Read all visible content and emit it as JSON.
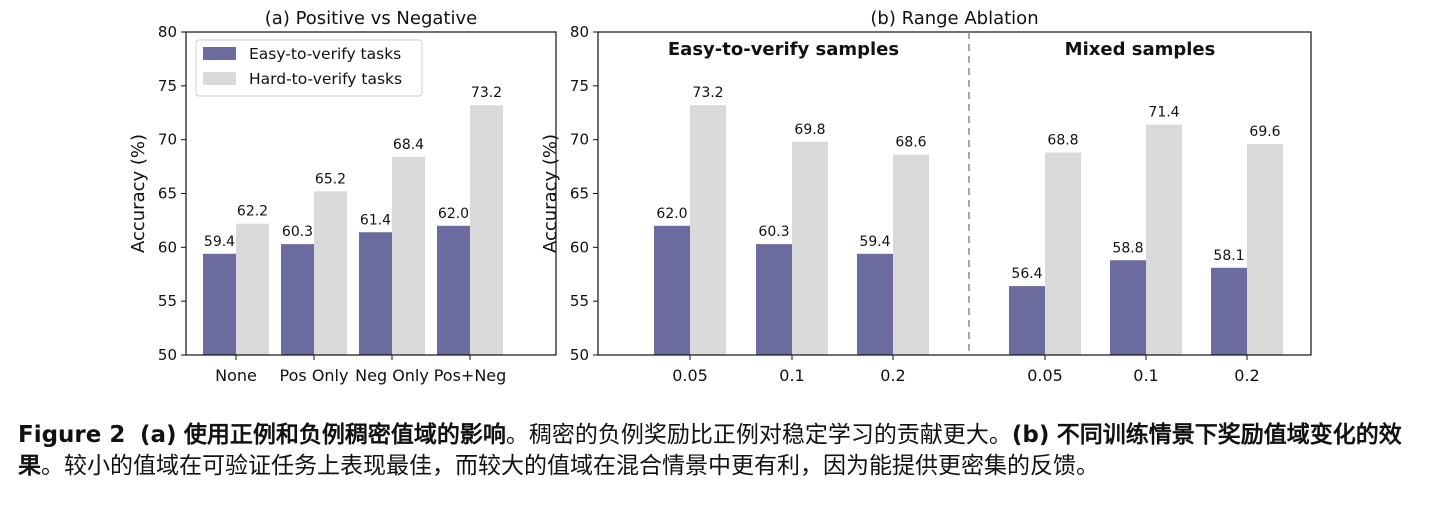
{
  "colors": {
    "easy": "#6b6ba0",
    "hard": "#d9d9d9"
  },
  "chart_data": [
    {
      "type": "bar",
      "title": "(a) Positive vs Negative",
      "ylabel": "Accuracy (%)",
      "xlabel": "",
      "ylim": [
        50,
        80
      ],
      "yticks": [
        50,
        55,
        60,
        65,
        70,
        75,
        80
      ],
      "categories": [
        "None",
        "Pos Only",
        "Neg Only",
        "Pos+Neg"
      ],
      "legend": {
        "placement": "top-left",
        "entries": [
          "Easy-to-verify tasks",
          "Hard-to-verify tasks"
        ]
      },
      "series": [
        {
          "name": "Easy-to-verify tasks",
          "values": [
            59.4,
            60.3,
            61.4,
            62.0
          ],
          "labels": [
            "59.4",
            "60.3",
            "61.4",
            "62.0"
          ]
        },
        {
          "name": "Hard-to-verify tasks",
          "values": [
            62.2,
            65.2,
            68.4,
            73.2
          ],
          "labels": [
            "62.2",
            "65.2",
            "68.4",
            "73.2"
          ]
        }
      ]
    },
    {
      "type": "bar",
      "title": "(b) Range Ablation",
      "ylabel": "Accuracy (%)",
      "xlabel": "",
      "ylim": [
        50,
        80
      ],
      "yticks": [
        50,
        55,
        60,
        65,
        70,
        75,
        80
      ],
      "panels": [
        "Easy-to-verify samples",
        "Mixed samples"
      ],
      "categories": [
        "0.05",
        "0.1",
        "0.2",
        "0.05",
        "0.1",
        "0.2"
      ],
      "series": [
        {
          "name": "Easy-to-verify tasks",
          "values": [
            62.0,
            60.3,
            59.4,
            56.4,
            58.8,
            58.1
          ],
          "labels": [
            "62.0",
            "60.3",
            "59.4",
            "56.4",
            "58.8",
            "58.1"
          ]
        },
        {
          "name": "Hard-to-verify tasks",
          "values": [
            73.2,
            69.8,
            68.6,
            68.8,
            71.4,
            69.6
          ],
          "labels": [
            "73.2",
            "69.8",
            "68.6",
            "68.8",
            "71.4",
            "69.6"
          ]
        }
      ]
    }
  ],
  "caption": {
    "figure_label": "Figure 2",
    "part_a_label": "(a)",
    "part_a_title": "使用正例和负例稠密值域的影响",
    "part_a_text": "。稠密的负例奖励比正例对稳定学习的贡献更大。",
    "part_b_label": "(b)",
    "part_b_title": "不同训练情景下奖励值域变化的效果",
    "part_b_text": "。较小的值域在可验证任务上表现最佳，而较大的值域在混合情景中更有利，因为能提供更密集的反馈。"
  }
}
